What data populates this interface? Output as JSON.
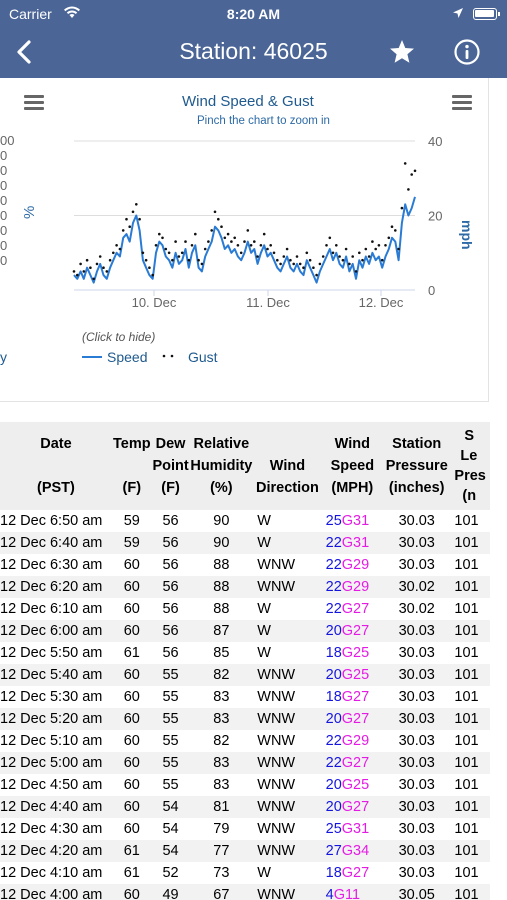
{
  "status_bar": {
    "carrier": "Carrier",
    "time": "8:20 AM"
  },
  "nav": {
    "title": "Station: 46025",
    "back_icon": "chevron-left-icon",
    "favorite_icon": "star-icon",
    "info_icon": "info-icon"
  },
  "colors": {
    "nav_bg": "#4a6596",
    "speed_line": "#2a7bd4",
    "gust_dots": "#111111",
    "speed_value": "#1515e0",
    "gust_value": "#e51be5",
    "axis_title": "#2d6aa6"
  },
  "left_chart_partial": {
    "tick_labels": [
      "00",
      "0",
      "0",
      "0",
      "0",
      "0",
      "0",
      "0",
      "0"
    ],
    "axis_label": "%",
    "legend_fragment": "y"
  },
  "chart_data": {
    "type": "line",
    "title": "Wind Speed & Gust",
    "subtitle": "Pinch the chart to zoom in",
    "ylabel": "mph",
    "ylim": [
      0,
      40
    ],
    "yticks": [
      "0",
      "20",
      "40"
    ],
    "xticks": [
      "10. Dec",
      "11. Dec",
      "12. Dec"
    ],
    "legend_hint": "(Click to hide)",
    "series": [
      {
        "name": "Speed",
        "values": [
          4,
          3,
          5,
          3,
          6,
          4,
          2,
          5,
          7,
          4,
          3,
          6,
          8,
          10,
          9,
          14,
          15,
          13,
          18,
          20,
          16,
          8,
          6,
          4,
          3,
          10,
          13,
          12,
          9,
          8,
          6,
          10,
          7,
          8,
          11,
          6,
          10,
          12,
          6,
          5,
          9,
          11,
          13,
          17,
          16,
          14,
          11,
          12,
          10,
          11,
          9,
          8,
          10,
          13,
          10,
          11,
          7,
          10,
          12,
          9,
          10,
          8,
          6,
          5,
          7,
          9,
          6,
          5,
          7,
          5,
          4,
          8,
          6,
          4,
          2,
          5,
          7,
          9,
          11,
          8,
          10,
          7,
          6,
          9,
          5,
          7,
          3,
          8,
          6,
          9,
          7,
          10,
          8,
          9,
          6,
          9,
          11,
          14,
          13,
          8,
          18,
          23,
          20,
          22,
          25
        ]
      },
      {
        "name": "Gust",
        "values": [
          5,
          4,
          7,
          5,
          8,
          6,
          3,
          7,
          9,
          6,
          5,
          8,
          10,
          12,
          11,
          16,
          19,
          17,
          21,
          23,
          19,
          10,
          8,
          6,
          4,
          12,
          15,
          14,
          11,
          10,
          8,
          13,
          9,
          10,
          13,
          8,
          12,
          15,
          8,
          7,
          11,
          13,
          16,
          21,
          19,
          17,
          14,
          15,
          13,
          14,
          12,
          10,
          13,
          16,
          12,
          13,
          9,
          12,
          15,
          11,
          12,
          10,
          8,
          7,
          9,
          11,
          8,
          7,
          9,
          7,
          6,
          10,
          8,
          6,
          4,
          7,
          9,
          12,
          14,
          10,
          12,
          9,
          8,
          11,
          7,
          9,
          5,
          10,
          8,
          11,
          9,
          13,
          11,
          12,
          8,
          12,
          14,
          17,
          16,
          11,
          22,
          34,
          27,
          31,
          32
        ]
      }
    ]
  },
  "table": {
    "headers": [
      {
        "line1": "Date",
        "line2": "",
        "line3": "(PST)"
      },
      {
        "line1": "Temp",
        "line2": "",
        "line3": "(F)"
      },
      {
        "line1": "Dew",
        "line2": "Point",
        "line3": "(F)"
      },
      {
        "line1": "Relative",
        "line2": "Humidity",
        "line3": "(%)"
      },
      {
        "line1": "",
        "line2": "Wind",
        "line3": "Direction"
      },
      {
        "line1": "Wind",
        "line2": "Speed",
        "line3": "(MPH)"
      },
      {
        "line1": "Station",
        "line2": "Pressure",
        "line3": "(inches)"
      },
      {
        "line1": "S",
        "line2": "Le",
        "line3": "Pres",
        "line4": "(n"
      }
    ],
    "rows": [
      {
        "date": "12 Dec 6:50 am",
        "temp": "59",
        "dew": "56",
        "hum": "90",
        "dir": "W",
        "spd": "25",
        "gst": "G31",
        "prs": "30.03",
        "sea": "101"
      },
      {
        "date": "12 Dec 6:40 am",
        "temp": "59",
        "dew": "56",
        "hum": "90",
        "dir": "W",
        "spd": "22",
        "gst": "G31",
        "prs": "30.03",
        "sea": "101"
      },
      {
        "date": "12 Dec 6:30 am",
        "temp": "60",
        "dew": "56",
        "hum": "88",
        "dir": "WNW",
        "spd": "22",
        "gst": "G29",
        "prs": "30.03",
        "sea": "101"
      },
      {
        "date": "12 Dec 6:20 am",
        "temp": "60",
        "dew": "56",
        "hum": "88",
        "dir": "WNW",
        "spd": "22",
        "gst": "G29",
        "prs": "30.02",
        "sea": "101"
      },
      {
        "date": "12 Dec 6:10 am",
        "temp": "60",
        "dew": "56",
        "hum": "88",
        "dir": "W",
        "spd": "22",
        "gst": "G27",
        "prs": "30.02",
        "sea": "101"
      },
      {
        "date": "12 Dec 6:00 am",
        "temp": "60",
        "dew": "56",
        "hum": "87",
        "dir": "W",
        "spd": "20",
        "gst": "G27",
        "prs": "30.03",
        "sea": "101"
      },
      {
        "date": "12 Dec 5:50 am",
        "temp": "61",
        "dew": "56",
        "hum": "85",
        "dir": "W",
        "spd": "18",
        "gst": "G25",
        "prs": "30.03",
        "sea": "101"
      },
      {
        "date": "12 Dec 5:40 am",
        "temp": "60",
        "dew": "55",
        "hum": "82",
        "dir": "WNW",
        "spd": "20",
        "gst": "G25",
        "prs": "30.03",
        "sea": "101"
      },
      {
        "date": "12 Dec 5:30 am",
        "temp": "60",
        "dew": "55",
        "hum": "83",
        "dir": "WNW",
        "spd": "18",
        "gst": "G27",
        "prs": "30.03",
        "sea": "101"
      },
      {
        "date": "12 Dec 5:20 am",
        "temp": "60",
        "dew": "55",
        "hum": "83",
        "dir": "WNW",
        "spd": "20",
        "gst": "G27",
        "prs": "30.03",
        "sea": "101"
      },
      {
        "date": "12 Dec 5:10 am",
        "temp": "60",
        "dew": "55",
        "hum": "82",
        "dir": "WNW",
        "spd": "22",
        "gst": "G29",
        "prs": "30.03",
        "sea": "101"
      },
      {
        "date": "12 Dec 5:00 am",
        "temp": "60",
        "dew": "55",
        "hum": "83",
        "dir": "WNW",
        "spd": "22",
        "gst": "G27",
        "prs": "30.03",
        "sea": "101"
      },
      {
        "date": "12 Dec 4:50 am",
        "temp": "60",
        "dew": "55",
        "hum": "83",
        "dir": "WNW",
        "spd": "20",
        "gst": "G25",
        "prs": "30.03",
        "sea": "101"
      },
      {
        "date": "12 Dec 4:40 am",
        "temp": "60",
        "dew": "54",
        "hum": "81",
        "dir": "WNW",
        "spd": "20",
        "gst": "G27",
        "prs": "30.03",
        "sea": "101"
      },
      {
        "date": "12 Dec 4:30 am",
        "temp": "60",
        "dew": "54",
        "hum": "79",
        "dir": "WNW",
        "spd": "25",
        "gst": "G31",
        "prs": "30.03",
        "sea": "101"
      },
      {
        "date": "12 Dec 4:20 am",
        "temp": "61",
        "dew": "54",
        "hum": "77",
        "dir": "WNW",
        "spd": "27",
        "gst": "G34",
        "prs": "30.03",
        "sea": "101"
      },
      {
        "date": "12 Dec 4:10 am",
        "temp": "61",
        "dew": "52",
        "hum": "73",
        "dir": "W",
        "spd": "18",
        "gst": "G27",
        "prs": "30.03",
        "sea": "101"
      },
      {
        "date": "12 Dec 4:00 am",
        "temp": "60",
        "dew": "49",
        "hum": "67",
        "dir": "WNW",
        "spd": "4",
        "gst": "G11",
        "prs": "30.05",
        "sea": "101"
      }
    ]
  }
}
